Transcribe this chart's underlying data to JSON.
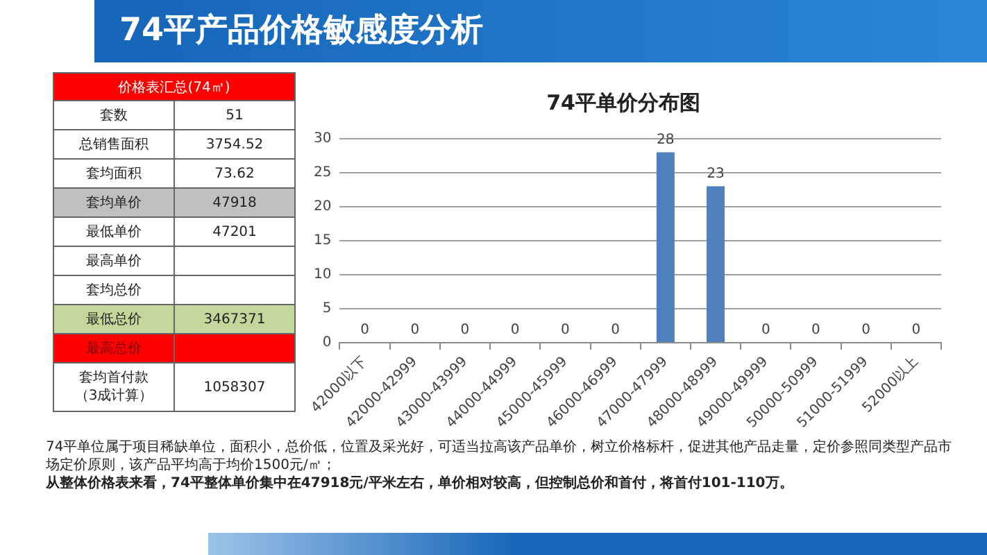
{
  "chart_data": [
    {
      "type": "other",
      "title": "74平产品价格敏感度分析",
      "subtitle": "价格表汇总(74㎡)",
      "categories": [
        "套数",
        "总销售面积",
        "套均面积",
        "套均单价",
        "最低单价",
        "最高单价",
        "套均总价",
        "最低总价",
        "最高总价",
        "套均首付款（3成计算）"
      ],
      "values": [
        51,
        3754.52,
        73.62,
        47918,
        47201,
        null,
        null,
        3467371,
        null,
        1058307
      ],
      "colors": [
        "#ffffff",
        "#ffffff",
        "#ffffff",
        "#c0c0c0",
        "#ffffff",
        "#ffffff",
        "#ffffff",
        "#c4d79b",
        "#ff0000",
        "#ffffff"
      ],
      "data_labels": true,
      "annotations": [
        "74平单位属于项目稀缺单位，面积小，总价低，位置及采光好，可适当拉高该产品单价，树立价格标杆，促进其他产品走量，定价参照同类型产品市场定价原则，该产品平均高于均价1500元/㎡；",
        "从整体价格表来看，74平整体单价集中在47918元/平米左右，单价相对较高，但控制总价和首付，将首付101-110万。"
      ]
    },
    {
      "type": "bar",
      "title": "74平单价分布图",
      "categories": [
        "42000以下",
        "42000-42999",
        "43000-43999",
        "44000-44999",
        "45000-45999",
        "46000-46999",
        "47000-47999",
        "48000-48999",
        "49000-49999",
        "50000-50999",
        "51000-51999",
        "52000以上"
      ],
      "values": [
        0,
        0,
        0,
        0,
        0,
        0,
        28,
        23,
        0,
        0,
        0,
        0
      ],
      "color": "#4f81bd",
      "ylim": [
        0,
        30
      ],
      "yticks": [
        0,
        5,
        10,
        15,
        20,
        25,
        30
      ],
      "grid": "y",
      "data_labels": true
    }
  ]
}
